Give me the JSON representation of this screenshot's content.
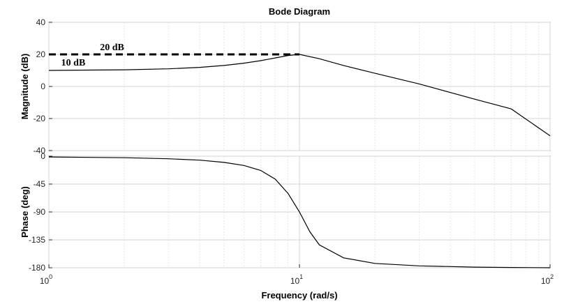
{
  "chart_data": {
    "type": "line",
    "title": "Bode Diagram",
    "xlabel": "Frequency  (rad/s)",
    "xscale": "log",
    "xlim": [
      1,
      100
    ],
    "x_ticks": [
      {
        "base": "10",
        "exp": "0"
      },
      {
        "base": "10",
        "exp": "1"
      },
      {
        "base": "10",
        "exp": "2"
      }
    ],
    "grid": true,
    "subplots": [
      {
        "ylabel": "Magnitude (dB)",
        "ylim": [
          -40,
          40
        ],
        "yticks": [
          "40",
          "20",
          "0",
          "-20",
          "-40"
        ],
        "series": [
          {
            "x": [
              1,
              2,
              3,
              4,
              5,
              6,
              7,
              8,
              9,
              10,
              12,
              15,
              20,
              30,
              50,
              70,
              100
            ],
            "y": [
              10,
              10.4,
              11,
              11.9,
              13.1,
              14.5,
              16.1,
              17.8,
              19.3,
              20,
              17.3,
              13.1,
              8.2,
              1.6,
              -7.9,
              -14.0,
              -30.8
            ]
          }
        ],
        "reference": {
          "y": 20,
          "x_end": 10
        },
        "annotations": [
          "20 dB",
          "10 dB"
        ]
      },
      {
        "ylabel": "Phase (deg)",
        "ylim": [
          -180,
          0
        ],
        "yticks": [
          "0",
          "-45",
          "-90",
          "-135",
          "-180"
        ],
        "series": [
          {
            "x": [
              1,
              2,
              3,
              4,
              5,
              6,
              7,
              8,
              9,
              10,
              11,
              12,
              15,
              20,
              30,
              50,
              70,
              100
            ],
            "y": [
              -1.2,
              -2.5,
              -4.2,
              -6.4,
              -10,
              -15,
              -23,
              -37,
              -60,
              -90,
              -122,
              -143,
              -164,
              -173,
              -177,
              -179,
              -179.5,
              -180
            ]
          }
        ]
      }
    ]
  }
}
